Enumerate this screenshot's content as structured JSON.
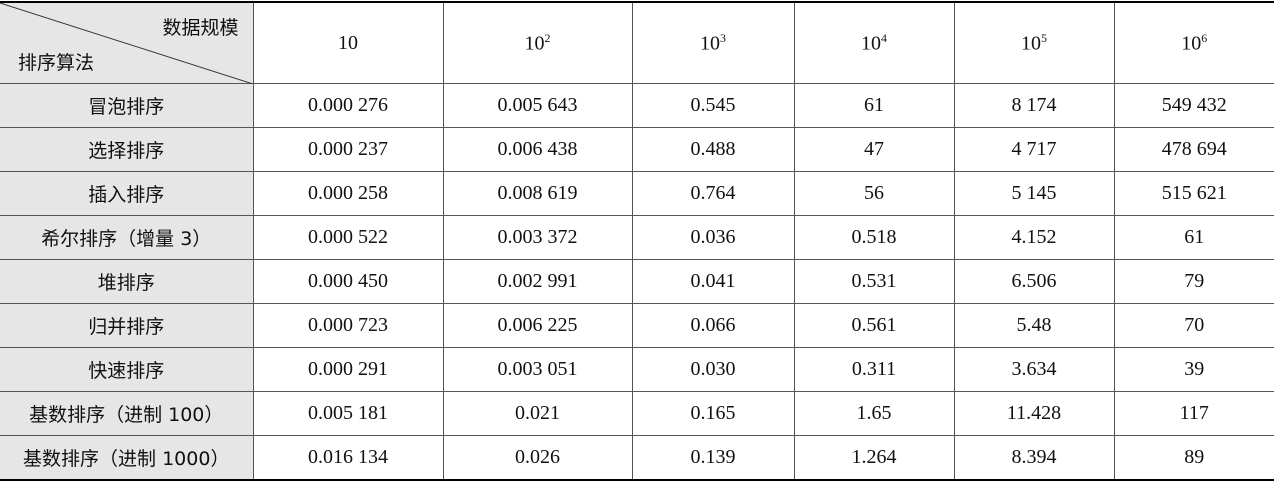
{
  "header": {
    "corner_top": "数据规模",
    "corner_bottom": "排序算法",
    "columns": [
      {
        "base": "10"
      },
      {
        "base": "10",
        "exp": "2"
      },
      {
        "base": "10",
        "exp": "3"
      },
      {
        "base": "10",
        "exp": "4"
      },
      {
        "base": "10",
        "exp": "5"
      },
      {
        "base": "10",
        "exp": "6"
      }
    ]
  },
  "table": {
    "rows": [
      [
        "冒泡排序",
        "0.000 276",
        "0.005 643",
        "0.545",
        "61",
        "8 174",
        "549 432"
      ],
      [
        "选择排序",
        "0.000 237",
        "0.006 438",
        "0.488",
        "47",
        "4 717",
        "478 694"
      ],
      [
        "插入排序",
        "0.000 258",
        "0.008 619",
        "0.764",
        "56",
        "5 145",
        "515 621"
      ],
      [
        "希尔排序（增量 3）",
        "0.000 522",
        "0.003 372",
        "0.036",
        "0.518",
        "4.152",
        "61"
      ],
      [
        "堆排序",
        "0.000 450",
        "0.002 991",
        "0.041",
        "0.531",
        "6.506",
        "79"
      ],
      [
        "归并排序",
        "0.000 723",
        "0.006 225",
        "0.066",
        "0.561",
        "5.48",
        "70"
      ],
      [
        "快速排序",
        "0.000 291",
        "0.003 051",
        "0.030",
        "0.311",
        "3.634",
        "39"
      ],
      [
        "基数排序（进制 100）",
        "0.005 181",
        "0.021",
        "0.165",
        "1.65",
        "11.428",
        "117"
      ],
      [
        "基数排序（进制 1000）",
        "0.016 134",
        "0.026",
        "0.139",
        "1.264",
        "8.394",
        "89"
      ]
    ]
  }
}
